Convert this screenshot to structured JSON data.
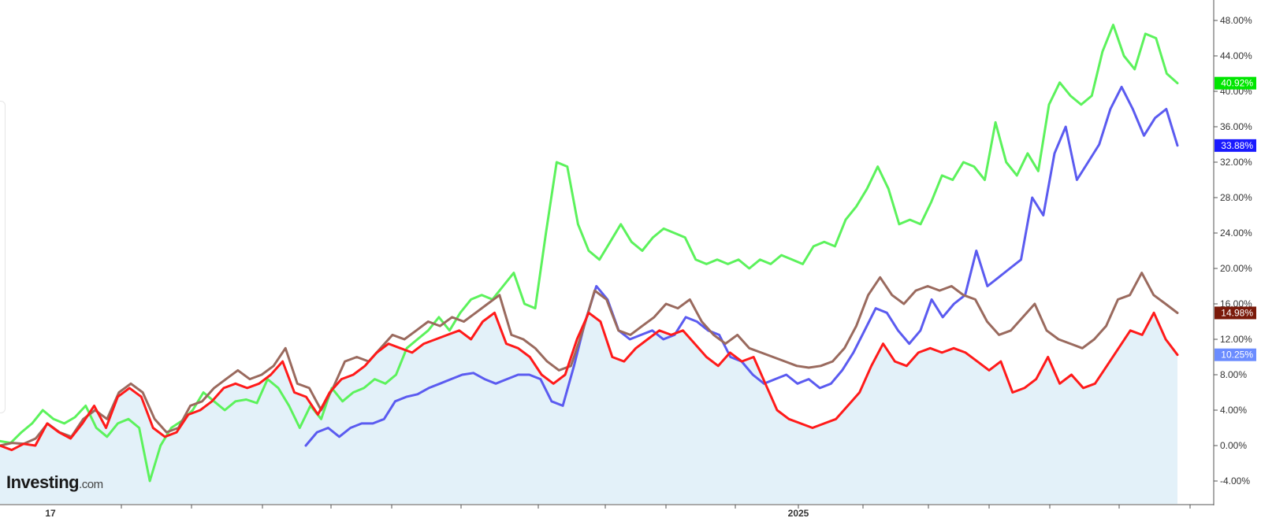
{
  "brand": {
    "name": "Investing",
    "suffix": ".com"
  },
  "chart_data": {
    "type": "line",
    "title": "",
    "xlabel": "",
    "ylabel": "",
    "ylim": [
      -6,
      50
    ],
    "y_ticks": [
      "48.00%",
      "44.00%",
      "40.00%",
      "36.00%",
      "32.00%",
      "28.00%",
      "24.00%",
      "20.00%",
      "16.00%",
      "12.00%",
      "8.00%",
      "4.00%",
      "0.00%",
      "-4.00%"
    ],
    "y_tick_values": [
      48,
      44,
      40,
      36,
      32,
      28,
      24,
      20,
      16,
      12,
      8,
      4,
      0,
      -4
    ],
    "x_tick_labels": [
      "17",
      "2025"
    ],
    "grid": false,
    "legend": "none",
    "series": [
      {
        "color": "#5cf25c",
        "last_label": "40.92%",
        "label_bg": "#00e600",
        "values": [
          0.5,
          0.3,
          1.5,
          2.5,
          4.0,
          3.0,
          2.5,
          3.2,
          4.5,
          2.0,
          1.0,
          2.5,
          3.0,
          2.0,
          -4.0,
          0.0,
          2.0,
          2.8,
          4.0,
          6.0,
          5.0,
          4.0,
          5.0,
          5.2,
          4.8,
          7.5,
          6.5,
          4.5,
          2.0,
          4.5,
          3.0,
          6.5,
          5.0,
          6.0,
          6.5,
          7.5,
          7.0,
          8.0,
          11.0,
          12.0,
          13.0,
          14.5,
          13.0,
          15.0,
          16.5,
          17.0,
          16.5,
          18.0,
          19.5,
          16.0,
          15.5,
          24.0,
          32.0,
          31.5,
          25.0,
          22.0,
          21.0,
          23.0,
          25.0,
          23.0,
          22.0,
          23.5,
          24.5,
          24.0,
          23.5,
          21.0,
          20.5,
          21.0,
          20.5,
          21.0,
          20.0,
          21.0,
          20.5,
          21.5,
          21.0,
          20.5,
          22.5,
          23.0,
          22.5,
          25.5,
          27.0,
          29.0,
          31.5,
          29.0,
          25.0,
          25.5,
          25.0,
          27.5,
          30.5,
          30.0,
          32.0,
          31.5,
          30.0,
          36.5,
          32.0,
          30.5,
          33.0,
          31.0,
          38.5,
          41.0,
          39.5,
          38.5,
          39.5,
          44.5,
          47.5,
          44.0,
          42.5,
          46.5,
          46.0,
          42.0,
          40.92
        ]
      },
      {
        "color": "#5b5bf0",
        "last_label": "33.88%",
        "label_bg": "#1a1aff",
        "values": [
          0.0,
          1.5,
          2.0,
          1.0,
          2.0,
          2.5,
          2.5,
          3.0,
          5.0,
          5.5,
          5.8,
          6.5,
          7.0,
          7.5,
          8.0,
          8.2,
          7.5,
          7.0,
          7.5,
          8.0,
          8.0,
          7.5,
          5.0,
          4.5,
          9.0,
          14.0,
          18.0,
          16.5,
          13.0,
          12.0,
          12.5,
          13.0,
          12.0,
          12.5,
          14.5,
          14.0,
          13.0,
          12.5,
          10.0,
          9.5,
          8.0,
          7.0,
          7.5,
          8.0,
          7.0,
          7.5,
          6.5,
          7.0,
          8.5,
          10.5,
          13.0,
          15.5,
          15.0,
          13.0,
          11.5,
          13.0,
          16.5,
          14.5,
          16.0,
          17.0,
          22.0,
          18.0,
          19.0,
          20.0,
          21.0,
          28.0,
          26.0,
          33.0,
          36.0,
          30.0,
          32.0,
          34.0,
          38.0,
          40.5,
          38.0,
          35.0,
          37.0,
          38.0,
          33.88
        ]
      },
      {
        "color": "#9a6a5e",
        "last_label": "14.98%",
        "label_bg": "#7a1a0a",
        "values": [
          0.0,
          0.3,
          0.2,
          0.8,
          2.5,
          1.5,
          1.0,
          3.0,
          4.0,
          3.0,
          6.0,
          7.0,
          6.0,
          3.0,
          1.5,
          2.0,
          4.5,
          5.0,
          6.5,
          7.5,
          8.5,
          7.5,
          8.0,
          9.0,
          11.0,
          7.0,
          6.5,
          4.0,
          6.5,
          9.5,
          10.0,
          9.5,
          11.0,
          12.5,
          12.0,
          13.0,
          14.0,
          13.5,
          14.5,
          14.0,
          15.0,
          16.0,
          17.0,
          12.5,
          12.0,
          11.0,
          9.5,
          8.5,
          9.0,
          13.0,
          17.5,
          16.5,
          13.0,
          12.5,
          13.5,
          14.5,
          16.0,
          15.5,
          16.5,
          14.0,
          12.5,
          11.5,
          12.5,
          11.0,
          10.5,
          10.0,
          9.5,
          9.0,
          8.8,
          9.0,
          9.5,
          11.0,
          13.5,
          17.0,
          19.0,
          17.0,
          16.0,
          17.5,
          18.0,
          17.5,
          18.0,
          17.0,
          16.5,
          14.0,
          12.5,
          13.0,
          14.5,
          16.0,
          13.0,
          12.0,
          11.5,
          11.0,
          12.0,
          13.5,
          16.5,
          17.0,
          19.5,
          17.0,
          16.0,
          14.98
        ]
      },
      {
        "color": "#ff1a1a",
        "last_label": "10.25%",
        "label_bg": "#6b8cff",
        "values": [
          0.0,
          -0.5,
          0.2,
          0.0,
          2.5,
          1.5,
          0.8,
          2.5,
          4.5,
          2.0,
          5.5,
          6.5,
          5.5,
          2.0,
          1.0,
          1.5,
          3.5,
          4.0,
          5.0,
          6.5,
          7.0,
          6.5,
          7.0,
          8.0,
          9.5,
          6.0,
          5.5,
          3.5,
          6.0,
          7.5,
          8.0,
          9.0,
          10.5,
          11.5,
          11.0,
          10.5,
          11.5,
          12.0,
          12.5,
          13.0,
          12.0,
          14.0,
          15.0,
          11.5,
          11.0,
          10.0,
          8.0,
          7.0,
          8.0,
          12.0,
          15.0,
          14.0,
          10.0,
          9.5,
          11.0,
          12.0,
          13.0,
          12.5,
          13.0,
          11.5,
          10.0,
          9.0,
          10.5,
          9.5,
          10.0,
          7.0,
          4.0,
          3.0,
          2.5,
          2.0,
          2.5,
          3.0,
          4.5,
          6.0,
          9.0,
          11.5,
          9.5,
          9.0,
          10.5,
          11.0,
          10.5,
          11.0,
          10.5,
          9.5,
          8.5,
          9.5,
          6.0,
          6.5,
          7.5,
          10.0,
          7.0,
          8.0,
          6.5,
          7.0,
          9.0,
          11.0,
          13.0,
          12.5,
          15.0,
          12.0,
          10.25
        ]
      }
    ]
  }
}
